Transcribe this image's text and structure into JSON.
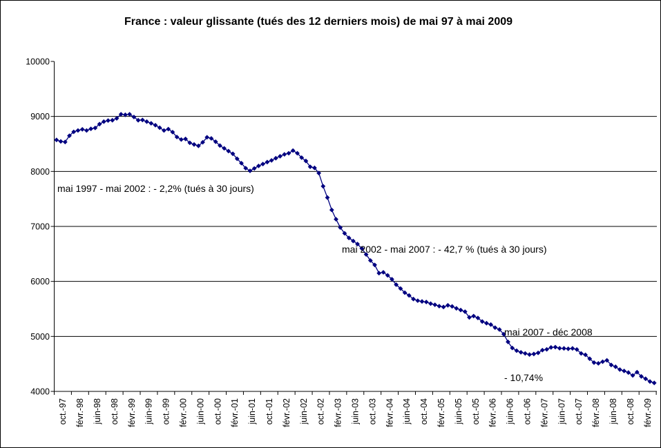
{
  "title": "France : valeur glissante (tués des 12 derniers mois) de mai 97 à mai 2009",
  "annotations": {
    "period1": "mai 1997 - mai 2002 : - 2,2% (tués à 30 jours)",
    "period2": "mai 2002 - mai 2007 : - 42,7 % (tués à 30 jours)",
    "period3_line1": "mai 2007 - déc 2008",
    "period3_line2": "- 10,74%"
  },
  "chart_data": {
    "type": "line",
    "title": "France : valeur glissante (tués des 12 derniers mois) de mai 97 à mai 2009",
    "series_name": "tués des 12 derniers mois (tués à 30 jours)",
    "series_color": "#000080",
    "marker": "diamond",
    "legend_position": "none",
    "grid": "horizontal",
    "x_unit": "month",
    "x_first_point": "oct.-97",
    "x_last_point": "mai-09",
    "ylim": [
      4000,
      10000
    ],
    "y_tick_labels": [
      "10000",
      "9000",
      "8000",
      "7000",
      "6000",
      "5000",
      "4000"
    ],
    "y_gridlines": [
      9000,
      8000,
      7000,
      6000,
      5000
    ],
    "x_tick_labels": [
      "oct.-97",
      "févr.-98",
      "juin-98",
      "oct.-98",
      "févr.-99",
      "juin-99",
      "oct.-99",
      "févr.-00",
      "juin-00",
      "oct.-00",
      "févr.-01",
      "juin-01",
      "oct.-01",
      "févr.-02",
      "juin-02",
      "oct.-02",
      "févr.-03",
      "juin-03",
      "oct.-03",
      "févr.-04",
      "juin-04",
      "oct.-04",
      "févr.-05",
      "juin-05",
      "oct.-05",
      "févr.-06",
      "juin-06",
      "oct.-06",
      "févr.-07",
      "juin-07",
      "oct.-07",
      "févr.-08",
      "juin-08",
      "oct.-08",
      "févr.-09"
    ],
    "x_label_interval_months": 4,
    "values": [
      8573,
      8545,
      8535,
      8650,
      8720,
      8745,
      8765,
      8745,
      8775,
      8790,
      8860,
      8905,
      8925,
      8930,
      8965,
      9040,
      9030,
      9040,
      8990,
      8930,
      8935,
      8905,
      8875,
      8840,
      8795,
      8745,
      8770,
      8715,
      8625,
      8580,
      8590,
      8520,
      8490,
      8465,
      8530,
      8620,
      8600,
      8540,
      8470,
      8420,
      8370,
      8320,
      8230,
      8150,
      8060,
      8010,
      8055,
      8100,
      8135,
      8170,
      8200,
      8240,
      8275,
      8310,
      8330,
      8380,
      8330,
      8250,
      8190,
      8085,
      8065,
      7970,
      7730,
      7525,
      7300,
      7130,
      6980,
      6875,
      6790,
      6735,
      6680,
      6600,
      6490,
      6380,
      6300,
      6150,
      6165,
      6110,
      6040,
      5940,
      5870,
      5795,
      5745,
      5680,
      5650,
      5635,
      5625,
      5595,
      5575,
      5550,
      5535,
      5565,
      5545,
      5510,
      5480,
      5450,
      5345,
      5370,
      5335,
      5270,
      5240,
      5215,
      5160,
      5125,
      5040,
      4900,
      4790,
      4740,
      4710,
      4690,
      4670,
      4680,
      4700,
      4750,
      4765,
      4800,
      4805,
      4785,
      4782,
      4775,
      4782,
      4762,
      4690,
      4665,
      4594,
      4523,
      4510,
      4540,
      4565,
      4481,
      4448,
      4397,
      4372,
      4343,
      4290,
      4350,
      4272,
      4230,
      4180,
      4155
    ]
  }
}
